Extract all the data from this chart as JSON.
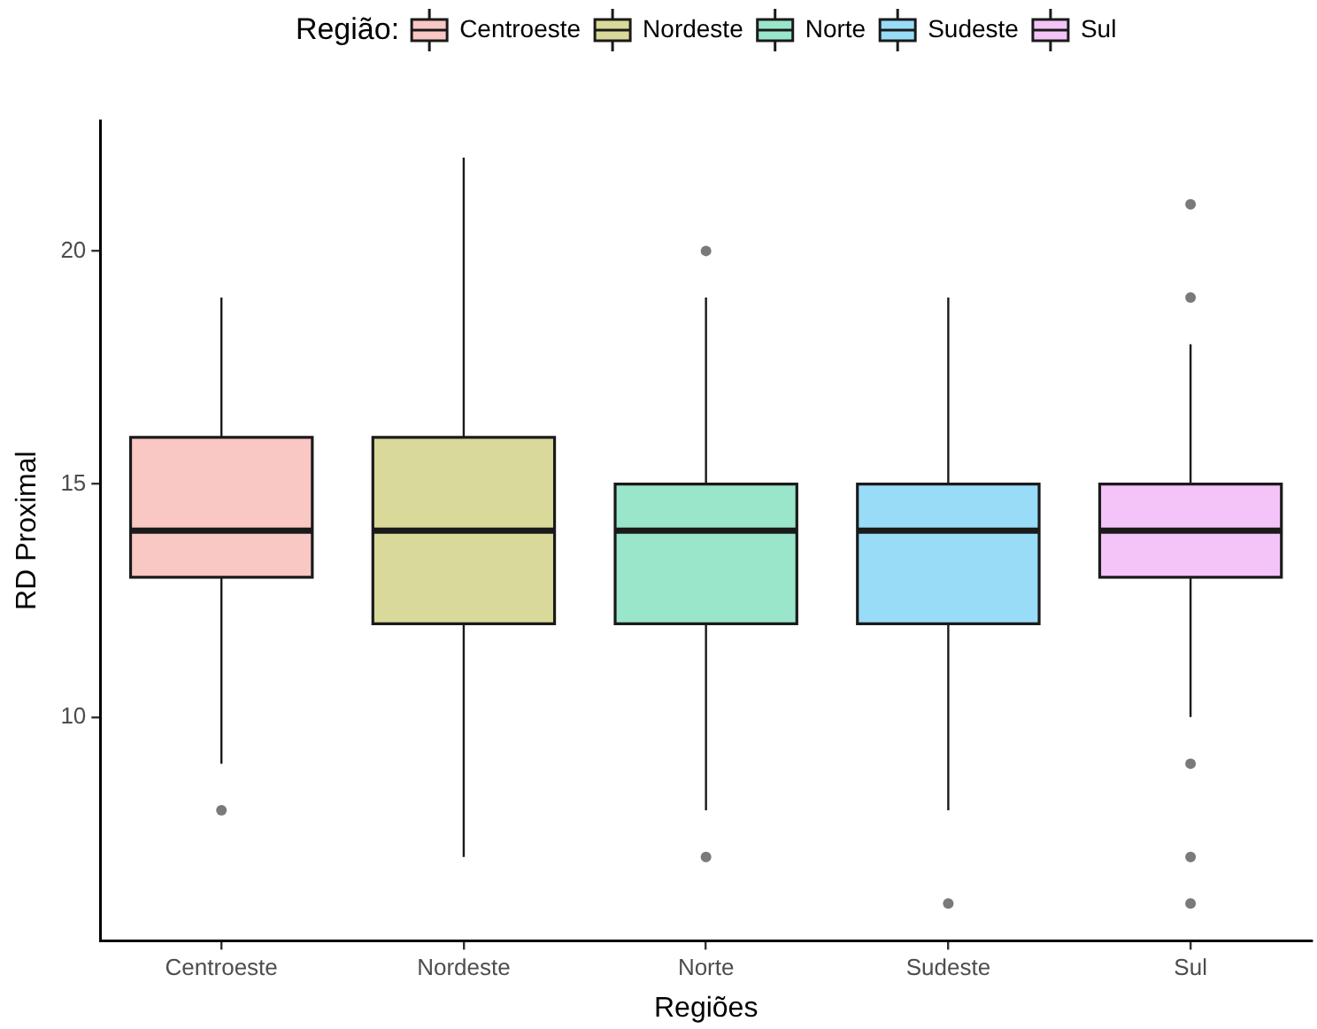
{
  "chart_data": {
    "type": "box",
    "xlabel": "Regiões",
    "ylabel": "RD Proximal",
    "legend_title": "Região:",
    "legend": "top",
    "categories": [
      "Centroeste",
      "Nordeste",
      "Norte",
      "Sudeste",
      "Sul"
    ],
    "series": [
      {
        "name": "Centroeste",
        "color": "#f9c7c4",
        "boxes": [
          {
            "low": 9,
            "q1": 13,
            "median": 14,
            "q3": 16,
            "high": 19,
            "outliers": [
              8
            ]
          },
          null,
          null,
          null,
          null
        ]
      },
      {
        "name": "Nordeste",
        "color": "#d9d99a",
        "boxes": [
          null,
          {
            "low": 7,
            "q1": 12,
            "median": 14,
            "q3": 16,
            "high": 22
          },
          null,
          null,
          null
        ]
      },
      {
        "name": "Norte",
        "color": "#9ae6cb",
        "boxes": [
          null,
          null,
          {
            "low": 8,
            "q1": 12,
            "median": 14,
            "q3": 15,
            "high": 19,
            "outliers": [
              20,
              7
            ]
          },
          null,
          null
        ]
      },
      {
        "name": "Sudeste",
        "color": "#99dcf8",
        "boxes": [
          null,
          null,
          null,
          {
            "low": 8,
            "q1": 12,
            "median": 14,
            "q3": 15,
            "high": 19,
            "outliers": [
              6
            ]
          },
          null
        ]
      },
      {
        "name": "Sul",
        "color": "#f4c4f8",
        "boxes": [
          null,
          null,
          null,
          null,
          {
            "low": 10,
            "q1": 13,
            "median": 14,
            "q3": 15,
            "high": 18,
            "outliers": [
              21,
              19,
              9,
              7,
              6
            ]
          }
        ]
      }
    ],
    "ylim": [
      5.2,
      22.8
    ],
    "yticks": [
      10,
      15,
      20
    ]
  }
}
